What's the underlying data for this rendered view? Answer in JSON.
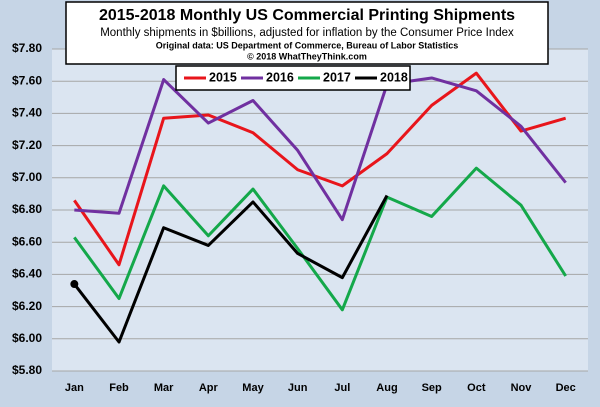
{
  "chart_data": {
    "type": "line",
    "title": "2015-2018 Monthly US Commercial Printing Shipments",
    "subtitle": "Monthly shipments in $billions, adjusted for inflation by the Consumer Price Index",
    "source": "Original data: US Department of Commerce, Bureau of Labor Statistics",
    "copyright": "© 2018 WhatTheyThink.com",
    "categories": [
      "Jan",
      "Feb",
      "Mar",
      "Apr",
      "May",
      "Jun",
      "Jul",
      "Aug",
      "Sep",
      "Oct",
      "Nov",
      "Dec"
    ],
    "series": [
      {
        "name": "2015",
        "color": "#e8151b",
        "values": [
          6.86,
          6.46,
          7.37,
          7.39,
          7.28,
          7.05,
          6.95,
          7.15,
          7.45,
          7.65,
          7.29,
          7.37
        ]
      },
      {
        "name": "2016",
        "color": "#7030a0",
        "values": [
          6.8,
          6.78,
          7.61,
          7.34,
          7.48,
          7.17,
          6.74,
          7.58,
          7.62,
          7.54,
          7.32,
          6.97
        ]
      },
      {
        "name": "2017",
        "color": "#14a84a",
        "values": [
          6.63,
          6.25,
          6.95,
          6.64,
          6.93,
          6.56,
          6.18,
          6.88,
          6.76,
          7.06,
          6.83,
          6.39
        ]
      },
      {
        "name": "2018",
        "color": "#000000",
        "values": [
          6.34,
          5.98,
          6.69,
          6.58,
          6.85,
          6.53,
          6.38,
          6.89,
          null,
          null,
          null,
          null
        ]
      }
    ],
    "ylim": [
      5.8,
      7.8
    ],
    "yticks": [
      {
        "value": 5.8,
        "label": "$5.80"
      },
      {
        "value": 6.0,
        "label": "$6.00"
      },
      {
        "value": 6.2,
        "label": "$6.20"
      },
      {
        "value": 6.4,
        "label": "$6.40"
      },
      {
        "value": 6.6,
        "label": "$6.60"
      },
      {
        "value": 6.8,
        "label": "$6.80"
      },
      {
        "value": 7.0,
        "label": "$7.00"
      },
      {
        "value": 7.2,
        "label": "$7.20"
      },
      {
        "value": 7.4,
        "label": "$7.40"
      },
      {
        "value": 7.6,
        "label": "$7.60"
      },
      {
        "value": 7.8,
        "label": "$7.80"
      }
    ],
    "grid": true
  }
}
